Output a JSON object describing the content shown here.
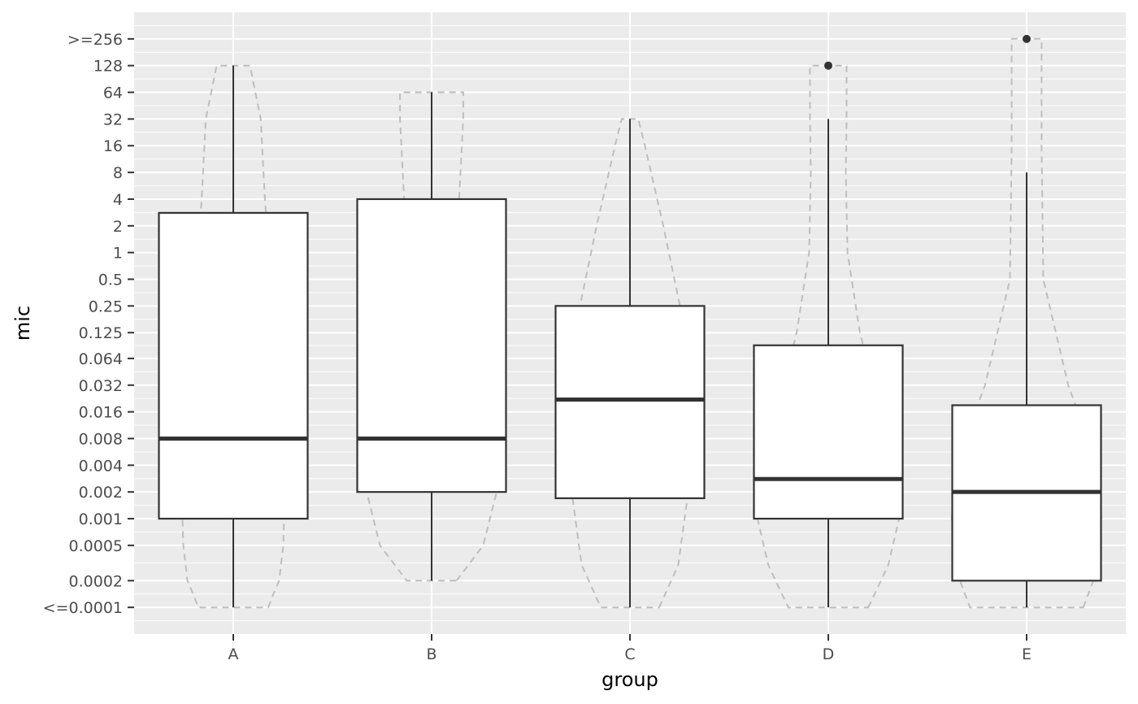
{
  "chart_data": {
    "type": "boxplot",
    "xlabel": "group",
    "ylabel": "mic",
    "y_scale": "log2",
    "y_tick_labels": [
      "<=0.0001",
      "0.0002",
      "0.0005",
      "0.001",
      "0.002",
      "0.004",
      "0.008",
      "0.016",
      "0.032",
      "0.064",
      "0.125",
      "0.25",
      "0.5",
      "1",
      "2",
      "4",
      "8",
      "16",
      "32",
      "64",
      "128",
      ">=256"
    ],
    "y_tick_values": [
      0.0001,
      0.0002,
      0.0005,
      0.001,
      0.002,
      0.004,
      0.008,
      0.016,
      0.032,
      0.064,
      0.125,
      0.25,
      0.5,
      1,
      2,
      4,
      8,
      16,
      32,
      64,
      128,
      256
    ],
    "ylim": [
      5e-05,
      512
    ],
    "grid": true,
    "categories": [
      "A",
      "B",
      "C",
      "D",
      "E"
    ],
    "boxes": [
      {
        "group": "A",
        "whisker_low": 0.0001,
        "q1": 0.001,
        "median": 0.008,
        "q3": 2.8,
        "whisker_high": 128,
        "outliers": []
      },
      {
        "group": "B",
        "whisker_low": 0.0002,
        "q1": 0.002,
        "median": 0.008,
        "q3": 4,
        "whisker_high": 64,
        "outliers": []
      },
      {
        "group": "C",
        "whisker_low": 0.0001,
        "q1": 0.0017,
        "median": 0.022,
        "q3": 0.25,
        "whisker_high": 32,
        "outliers": []
      },
      {
        "group": "D",
        "whisker_low": 0.0001,
        "q1": 0.001,
        "median": 0.0028,
        "q3": 0.09,
        "whisker_high": 32,
        "outliers": [
          128
        ]
      },
      {
        "group": "E",
        "whisker_low": 0.0001,
        "q1": 0.0002,
        "median": 0.002,
        "q3": 0.019,
        "whisker_high": 8,
        "outliers": [
          256
        ]
      }
    ],
    "violins": [
      {
        "group": "A",
        "profile": [
          [
            0.0001,
            0.42
          ],
          [
            0.00014,
            0.48
          ],
          [
            0.0002,
            0.55
          ],
          [
            0.0005,
            0.6
          ],
          [
            0.002,
            0.62
          ],
          [
            0.008,
            0.58
          ],
          [
            0.064,
            0.52
          ],
          [
            0.5,
            0.45
          ],
          [
            4,
            0.38
          ],
          [
            32,
            0.33
          ],
          [
            128,
            0.2
          ]
        ]
      },
      {
        "group": "B",
        "profile": [
          [
            0.0002,
            0.3
          ],
          [
            0.0005,
            0.62
          ],
          [
            0.002,
            0.78
          ],
          [
            0.008,
            0.75
          ],
          [
            0.064,
            0.6
          ],
          [
            0.5,
            0.28
          ],
          [
            4,
            0.33
          ],
          [
            32,
            0.38
          ],
          [
            64,
            0.38
          ]
        ]
      },
      {
        "group": "C",
        "profile": [
          [
            0.0001,
            0.35
          ],
          [
            0.0003,
            0.58
          ],
          [
            0.002,
            0.7
          ],
          [
            0.032,
            0.68
          ],
          [
            0.25,
            0.6
          ],
          [
            2,
            0.4
          ],
          [
            16,
            0.18
          ],
          [
            32,
            0.1
          ]
        ]
      },
      {
        "group": "D",
        "profile": [
          [
            0.0001,
            0.48
          ],
          [
            0.0003,
            0.72
          ],
          [
            0.001,
            0.85
          ],
          [
            0.008,
            0.7
          ],
          [
            0.125,
            0.38
          ],
          [
            1,
            0.23
          ],
          [
            8,
            0.21
          ],
          [
            32,
            0.22
          ],
          [
            128,
            0.22
          ]
        ]
      },
      {
        "group": "E",
        "profile": [
          [
            0.0001,
            0.68
          ],
          [
            0.0002,
            0.8
          ],
          [
            0.001,
            0.9
          ],
          [
            0.004,
            0.85
          ],
          [
            0.032,
            0.5
          ],
          [
            0.5,
            0.2
          ],
          [
            16,
            0.18
          ],
          [
            128,
            0.18
          ],
          [
            256,
            0.18
          ]
        ]
      }
    ],
    "colors": {
      "panel_background": "#EBEBEB",
      "grid_major": "#FFFFFF",
      "box_fill": "#FFFFFF",
      "box_line": "#333333",
      "violin_line": "#BEBEBE",
      "outlier": "#333333"
    }
  }
}
